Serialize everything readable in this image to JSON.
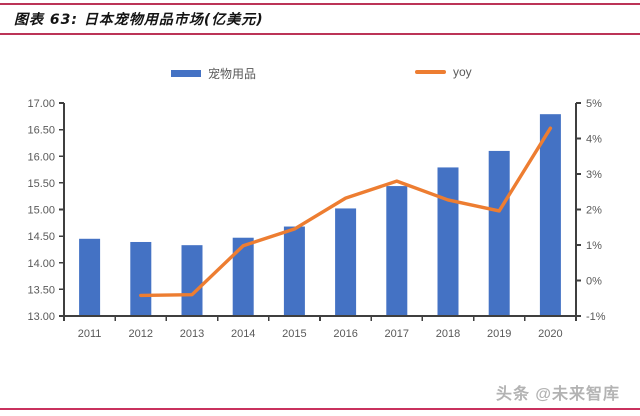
{
  "header": {
    "title": "图表 63: 日本宠物用品市场(亿美元)"
  },
  "colors": {
    "rule_crimson": "#BC3457",
    "bottom_rule": "#C9315E",
    "bar_blue": "#4472C4",
    "line_orange": "#ED7D31",
    "axis_line": "#3F3F3F",
    "axis_text": "#595959"
  },
  "watermark": {
    "text": "头条 @未来智库"
  },
  "chart_data": {
    "type": "bar+line combo",
    "title": "日本宠物用品市场(亿美元)",
    "categories": [
      "2011",
      "2012",
      "2013",
      "2014",
      "2015",
      "2016",
      "2017",
      "2018",
      "2019",
      "2020"
    ],
    "series": [
      {
        "name": "宠物用品",
        "type": "bar",
        "axis": "left",
        "color": "#4472C4",
        "values": [
          14.45,
          14.39,
          14.33,
          14.47,
          14.68,
          15.02,
          15.44,
          15.79,
          16.1,
          16.79
        ]
      },
      {
        "name": "yoy",
        "type": "line",
        "axis": "right",
        "color": "#ED7D31",
        "values": [
          null,
          -0.42,
          -0.4,
          0.98,
          1.45,
          2.32,
          2.8,
          2.27,
          1.96,
          4.29
        ]
      }
    ],
    "left_axis": {
      "min": 13,
      "max": 17,
      "ticks": [
        "13.00",
        "13.50",
        "14.00",
        "14.50",
        "15.00",
        "15.50",
        "16.00",
        "16.50",
        "17.00"
      ]
    },
    "right_axis": {
      "min": -1,
      "max": 5,
      "ticks": [
        "-1%",
        "0%",
        "1%",
        "2%",
        "3%",
        "4%",
        "5%"
      ]
    },
    "grid": false,
    "legend_position": "top"
  }
}
